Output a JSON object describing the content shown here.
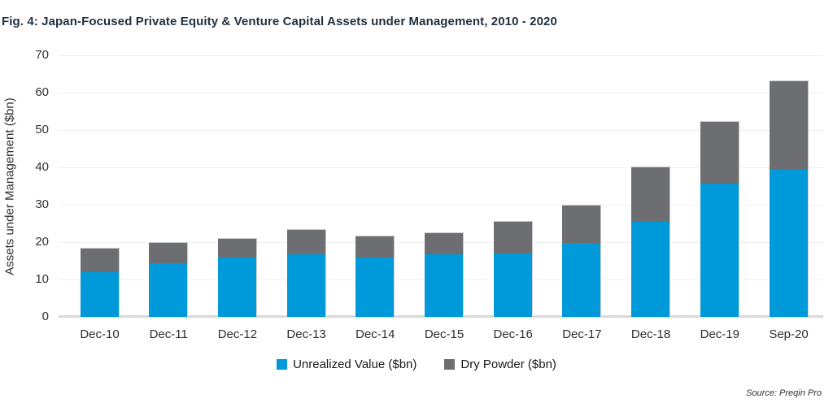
{
  "figure": {
    "title": "Fig. 4: Japan-Focused Private Equity & Venture Capital Assets under Management, 2010 - 2020",
    "source": "Source: Preqin Pro"
  },
  "chart_data": {
    "type": "bar",
    "stacked": true,
    "title": "Fig. 4: Japan-Focused Private Equity & Venture Capital Assets under Management, 2010 - 2020",
    "categories": [
      "Dec-10",
      "Dec-11",
      "Dec-12",
      "Dec-13",
      "Dec-14",
      "Dec-15",
      "Dec-16",
      "Dec-17",
      "Dec-18",
      "Dec-19",
      "Sep-20"
    ],
    "series": [
      {
        "name": "Unrealized Value ($bn)",
        "color": "#0099da",
        "values": [
          12.0,
          14.3,
          15.9,
          16.7,
          15.9,
          16.7,
          17.0,
          19.8,
          25.5,
          35.7,
          39.4
        ]
      },
      {
        "name": "Dry Powder ($bn)",
        "color": "#6d6e71",
        "values": [
          6.4,
          5.6,
          5.2,
          6.8,
          5.9,
          5.9,
          8.7,
          10.2,
          14.8,
          16.8,
          23.8
        ]
      }
    ],
    "totals": [
      18.4,
      19.9,
      21.1,
      23.5,
      21.8,
      22.6,
      25.7,
      30.0,
      40.3,
      52.5,
      63.2
    ],
    "xlabel": "",
    "ylabel": "Assets under Management ($bn)",
    "ylim": [
      0,
      70
    ],
    "yticks": [
      0,
      10,
      20,
      30,
      40,
      50,
      60,
      70
    ],
    "grid": true,
    "legend_position": "bottom",
    "source": "Source: Preqin Pro"
  }
}
